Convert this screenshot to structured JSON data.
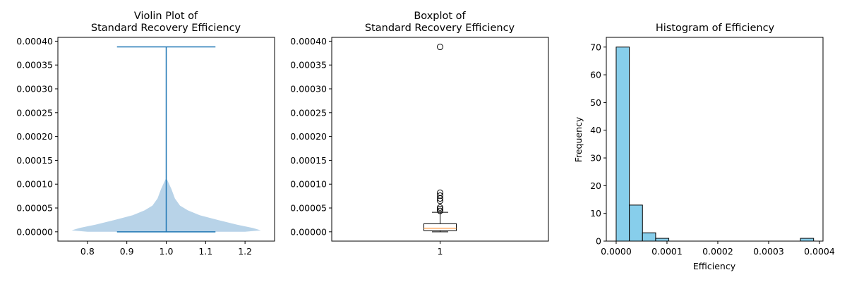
{
  "chart_data": [
    {
      "type": "violin",
      "title": [
        "Violin Plot of",
        "Standard Recovery Efficiency"
      ],
      "xlabel": "",
      "ylabel": "",
      "xlim": [
        0.725,
        1.275
      ],
      "ylim": [
        -1.95e-05,
        0.000408
      ],
      "x_ticks": [
        0.8,
        0.9,
        1.0,
        1.1,
        1.2
      ],
      "x_tick_labels": [
        "0.8",
        "0.9",
        "1.0",
        "1.1",
        "1.2"
      ],
      "y_ticks": [
        0,
        5e-05,
        0.0001,
        0.00015,
        0.0002,
        0.00025,
        0.0003,
        0.00035,
        0.0004
      ],
      "y_tick_labels": [
        "0.00000",
        "0.00005",
        "0.00010",
        "0.00015",
        "0.00020",
        "0.00025",
        "0.00030",
        "0.00035",
        "0.00040"
      ],
      "position": 1.0,
      "min": 0.0,
      "max": 0.000388,
      "density_profile": [
        {
          "y": 0.0,
          "half_width": 0.2
        },
        {
          "y": 3e-06,
          "half_width": 0.24
        },
        {
          "y": 8e-06,
          "half_width": 0.22
        },
        {
          "y": 1.5e-05,
          "half_width": 0.18
        },
        {
          "y": 2.5e-05,
          "half_width": 0.13
        },
        {
          "y": 3.5e-05,
          "half_width": 0.085
        },
        {
          "y": 4.5e-05,
          "half_width": 0.055
        },
        {
          "y": 5.5e-05,
          "half_width": 0.035
        },
        {
          "y": 7e-05,
          "half_width": 0.022
        },
        {
          "y": 9e-05,
          "half_width": 0.013
        },
        {
          "y": 0.00011,
          "half_width": 0.002
        }
      ],
      "body_color": "#b8d3e8",
      "line_color": "#1f77b4"
    },
    {
      "type": "box",
      "title": [
        "Boxplot of",
        "Standard Recovery Efficiency"
      ],
      "xlabel": "",
      "ylabel": "",
      "ylim": [
        -1.95e-05,
        0.000408
      ],
      "x_tick_labels": [
        "1"
      ],
      "y_ticks": [
        0,
        5e-05,
        0.0001,
        0.00015,
        0.0002,
        0.00025,
        0.0003,
        0.00035,
        0.0004
      ],
      "y_tick_labels": [
        "0.00000",
        "0.00005",
        "0.00010",
        "0.00015",
        "0.00020",
        "0.00025",
        "0.00030",
        "0.00035",
        "0.00040"
      ],
      "whisker_low": 0.0,
      "q1": 2.5e-06,
      "median": 7.5e-06,
      "q3": 1.7e-05,
      "whisker_high": 4.1e-05,
      "outliers": [
        4.4e-05,
        4.8e-05,
        5.1e-05,
        6.5e-05,
        7e-05,
        7.6e-05,
        8.2e-05,
        0.000388
      ],
      "median_color": "#ff7f0e"
    },
    {
      "type": "bar",
      "title": "Histogram of Efficiency",
      "xlabel": "Efficiency",
      "ylabel": "Frequency",
      "xlim": [
        -1.94e-05,
        0.000407
      ],
      "ylim": [
        0,
        73.5
      ],
      "x_ticks": [
        0,
        0.0001,
        0.0002,
        0.0003,
        0.0004
      ],
      "x_tick_labels": [
        "0.0000",
        "0.0001",
        "0.0002",
        "0.0003",
        "0.0004"
      ],
      "y_ticks": [
        0,
        10,
        20,
        30,
        40,
        50,
        60,
        70
      ],
      "y_tick_labels": [
        "0",
        "10",
        "20",
        "30",
        "40",
        "50",
        "60",
        "70"
      ],
      "bin_edges": [
        0.0,
        2.59e-05,
        5.18e-05,
        7.77e-05,
        0.0001036,
        0.0001295,
        0.0001554,
        0.0001813,
        0.0002072,
        0.0002331,
        0.000259,
        0.0002849,
        0.0003108,
        0.0003367,
        0.0003626,
        0.0003885
      ],
      "values": [
        70,
        13,
        3,
        1,
        0,
        0,
        0,
        0,
        0,
        0,
        0,
        0,
        0,
        0,
        1
      ],
      "bar_color": "#87ceeb"
    }
  ]
}
